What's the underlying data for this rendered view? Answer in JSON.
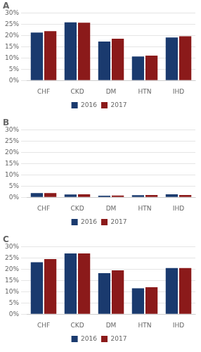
{
  "chart_data": [
    {
      "type": "bar",
      "title": "A",
      "categories": [
        "CHF",
        "CKD",
        "DM",
        "HTN",
        "IHD"
      ],
      "series": [
        {
          "name": "2016",
          "color": "#1a3a6e",
          "values": [
            21.3,
            25.8,
            17.3,
            10.6,
            19.1
          ]
        },
        {
          "name": "2017",
          "color": "#8b1a1a",
          "values": [
            21.9,
            25.7,
            18.5,
            11.0,
            19.6
          ]
        }
      ],
      "ylim": [
        0,
        30
      ],
      "yticks": [
        {
          "value": 0,
          "label": "0%"
        },
        {
          "value": 5,
          "label": "5%"
        },
        {
          "value": 10,
          "label": "10%"
        },
        {
          "value": 15,
          "label": "15%"
        },
        {
          "value": 20,
          "label": "20%"
        },
        {
          "value": 25,
          "label": "25%"
        },
        {
          "value": 30,
          "label": "30%"
        }
      ],
      "grid": true,
      "legend": "bottom"
    },
    {
      "type": "bar",
      "title": "B",
      "categories": [
        "CHF",
        "CKD",
        "DM",
        "HTN",
        "IHD"
      ],
      "series": [
        {
          "name": "2016",
          "color": "#1a3a6e",
          "values": [
            1.9,
            1.2,
            0.7,
            0.9,
            1.3
          ]
        },
        {
          "name": "2017",
          "color": "#8b1a1a",
          "values": [
            1.9,
            1.3,
            0.8,
            1.0,
            1.0
          ]
        }
      ],
      "ylim": [
        0,
        30
      ],
      "yticks": [
        {
          "value": 0,
          "label": "0%"
        },
        {
          "value": 5,
          "label": "5%"
        },
        {
          "value": 10,
          "label": "10%"
        },
        {
          "value": 15,
          "label": "15%"
        },
        {
          "value": 20,
          "label": "20%"
        },
        {
          "value": 25,
          "label": "25%"
        },
        {
          "value": 30,
          "label": "30%"
        }
      ],
      "grid": true,
      "legend": "bottom"
    },
    {
      "type": "bar",
      "title": "C",
      "categories": [
        "CHF",
        "CKD",
        "DM",
        "HTN",
        "IHD"
      ],
      "series": [
        {
          "name": "2016",
          "color": "#1a3a6e",
          "values": [
            23.1,
            27.0,
            18.2,
            11.5,
            20.5
          ]
        },
        {
          "name": "2017",
          "color": "#8b1a1a",
          "values": [
            24.5,
            27.0,
            19.5,
            12.0,
            20.5
          ]
        }
      ],
      "ylim": [
        0,
        30
      ],
      "yticks": [
        {
          "value": 0,
          "label": "0%"
        },
        {
          "value": 5,
          "label": "5%"
        },
        {
          "value": 10,
          "label": "10%"
        },
        {
          "value": 15,
          "label": "15%"
        },
        {
          "value": 20,
          "label": "20%"
        },
        {
          "value": 25,
          "label": "25%"
        },
        {
          "value": 30,
          "label": "30%"
        }
      ],
      "grid": true,
      "legend": "bottom"
    }
  ]
}
